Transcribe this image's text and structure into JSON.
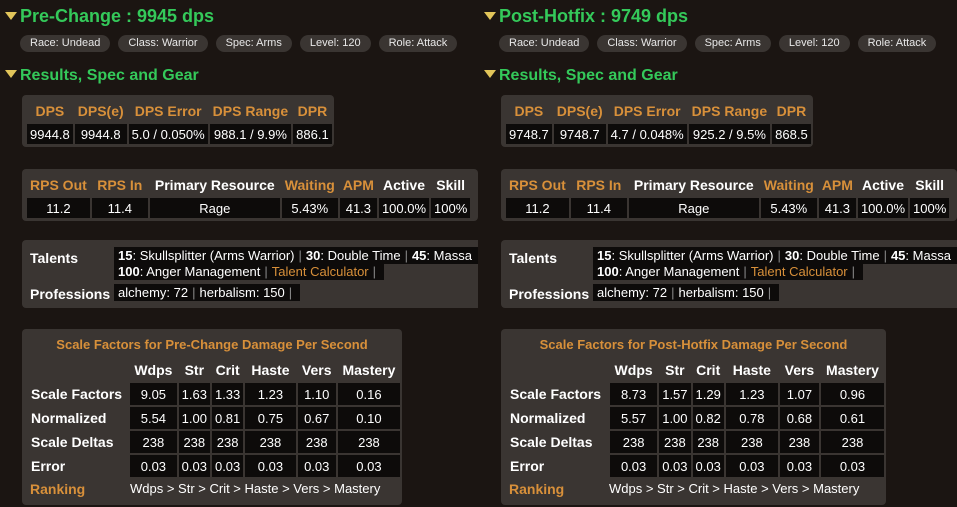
{
  "columns": [
    {
      "title": "Pre-Change : 9945 dps",
      "section_title": "Results, Spec and Gear",
      "badges": [
        "Race: Undead",
        "Class: Warrior",
        "Spec: Arms",
        "Level: 120",
        "Role: Attack"
      ],
      "dps_table": {
        "headers": [
          "DPS",
          "DPS(e)",
          "DPS Error",
          "DPS Range",
          "DPR"
        ],
        "values": [
          "9944.8",
          "9944.8",
          "5.0 / 0.050%",
          "988.1 / 9.9%",
          "886.1"
        ]
      },
      "resource_table": {
        "headers": [
          "RPS Out",
          "RPS In",
          "Primary Resource",
          "Waiting",
          "APM",
          "Active",
          "Skill"
        ],
        "values": [
          "11.2",
          "11.4",
          "Rage",
          "5.43%",
          "41.3",
          "100.0%",
          "100%"
        ]
      },
      "talents": {
        "label": "Talents",
        "line1": [
          {
            "tier": "15",
            "name": ": Skullsplitter (Arms Warrior)"
          },
          {
            "tier": "30",
            "name": ": Double Time"
          },
          {
            "tier": "45",
            "name": ": Massa"
          }
        ],
        "line2": {
          "tier": "100",
          "name": ": Anger Management"
        },
        "calculator_link": "Talent Calculator"
      },
      "professions": {
        "label": "Professions",
        "items": [
          "alchemy: 72",
          "herbalism: 150"
        ]
      },
      "scale_factors": {
        "title": "Scale Factors for Pre-Change Damage Per Second",
        "headers": [
          "Wdps",
          "Str",
          "Crit",
          "Haste",
          "Vers",
          "Mastery"
        ],
        "rows": [
          {
            "label": "Scale Factors",
            "values": [
              "9.05",
              "1.63",
              "1.33",
              "1.23",
              "1.10",
              "0.16"
            ]
          },
          {
            "label": "Normalized",
            "values": [
              "5.54",
              "1.00",
              "0.81",
              "0.75",
              "0.67",
              "0.10"
            ]
          },
          {
            "label": "Scale Deltas",
            "values": [
              "238",
              "238",
              "238",
              "238",
              "238",
              "238"
            ]
          },
          {
            "label": "Error",
            "values": [
              "0.03",
              "0.03",
              "0.03",
              "0.03",
              "0.03",
              "0.03"
            ]
          }
        ],
        "ranking_label": "Ranking",
        "ranking": "Wdps > Str > Crit > Haste > Vers > Mastery"
      }
    },
    {
      "title": "Post-Hotfix : 9749 dps",
      "section_title": "Results, Spec and Gear",
      "badges": [
        "Race: Undead",
        "Class: Warrior",
        "Spec: Arms",
        "Level: 120",
        "Role: Attack"
      ],
      "dps_table": {
        "headers": [
          "DPS",
          "DPS(e)",
          "DPS Error",
          "DPS Range",
          "DPR"
        ],
        "values": [
          "9748.7",
          "9748.7",
          "4.7 / 0.048%",
          "925.2 / 9.5%",
          "868.5"
        ]
      },
      "resource_table": {
        "headers": [
          "RPS Out",
          "RPS In",
          "Primary Resource",
          "Waiting",
          "APM",
          "Active",
          "Skill"
        ],
        "values": [
          "11.2",
          "11.4",
          "Rage",
          "5.43%",
          "41.3",
          "100.0%",
          "100%"
        ]
      },
      "talents": {
        "label": "Talents",
        "line1": [
          {
            "tier": "15",
            "name": ": Skullsplitter (Arms Warrior)"
          },
          {
            "tier": "30",
            "name": ": Double Time"
          },
          {
            "tier": "45",
            "name": ": Massa"
          }
        ],
        "line2": {
          "tier": "100",
          "name": ": Anger Management"
        },
        "calculator_link": "Talent Calculator"
      },
      "professions": {
        "label": "Professions",
        "items": [
          "alchemy: 72",
          "herbalism: 150"
        ]
      },
      "scale_factors": {
        "title": "Scale Factors for Post-Hotfix Damage Per Second",
        "headers": [
          "Wdps",
          "Str",
          "Crit",
          "Haste",
          "Vers",
          "Mastery"
        ],
        "rows": [
          {
            "label": "Scale Factors",
            "values": [
              "8.73",
              "1.57",
              "1.29",
              "1.23",
              "1.07",
              "0.96"
            ]
          },
          {
            "label": "Normalized",
            "values": [
              "5.57",
              "1.00",
              "0.82",
              "0.78",
              "0.68",
              "0.61"
            ]
          },
          {
            "label": "Scale Deltas",
            "values": [
              "238",
              "238",
              "238",
              "238",
              "238",
              "238"
            ]
          },
          {
            "label": "Error",
            "values": [
              "0.03",
              "0.03",
              "0.03",
              "0.03",
              "0.03",
              "0.03"
            ]
          }
        ],
        "ranking_label": "Ranking",
        "ranking": "Wdps > Str > Crit > Haste > Vers > Mastery"
      }
    }
  ]
}
